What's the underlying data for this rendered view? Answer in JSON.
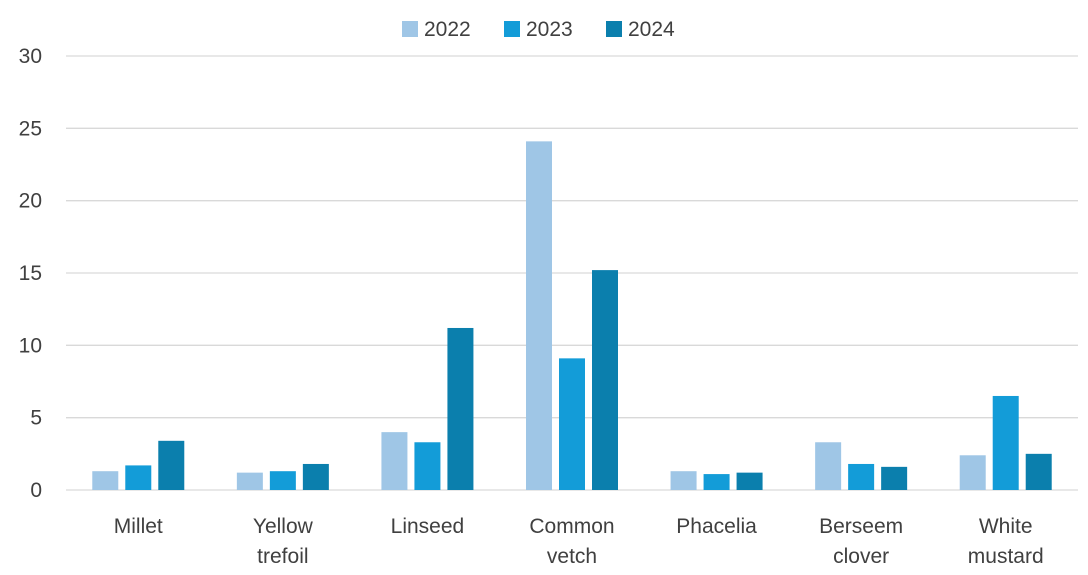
{
  "chart_data": {
    "type": "bar",
    "title": "",
    "xlabel": "",
    "ylabel": "",
    "categories": [
      [
        "Millet"
      ],
      [
        "Yellow",
        "trefoil"
      ],
      [
        "Linseed"
      ],
      [
        "Common",
        "vetch"
      ],
      [
        "Phacelia"
      ],
      [
        "Berseem",
        "clover"
      ],
      [
        "White",
        "mustard"
      ]
    ],
    "series": [
      {
        "name": "2022",
        "color": "#9fc6e6",
        "values": [
          1.3,
          1.2,
          4.0,
          24.1,
          1.3,
          3.3,
          2.4
        ]
      },
      {
        "name": "2023",
        "color": "#139cd8",
        "values": [
          1.7,
          1.3,
          3.3,
          9.1,
          1.1,
          1.8,
          6.5
        ]
      },
      {
        "name": "2024",
        "color": "#0b7fad",
        "values": [
          3.4,
          1.8,
          11.2,
          15.2,
          1.2,
          1.6,
          2.5
        ]
      }
    ],
    "ylim": [
      0,
      30
    ],
    "yticks": [
      0,
      5,
      10,
      15,
      20,
      25,
      30
    ],
    "grid": true,
    "gridline_color": "#d9d9d9",
    "legend": "top-center"
  }
}
